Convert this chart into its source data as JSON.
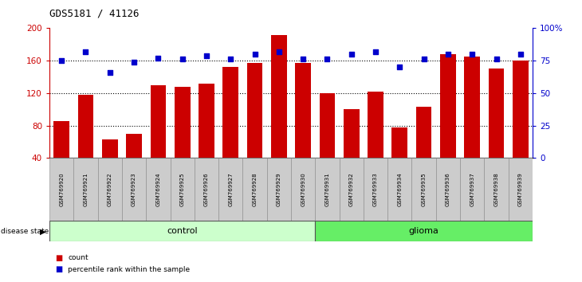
{
  "title": "GDS5181 / 41126",
  "samples": [
    "GSM769920",
    "GSM769921",
    "GSM769922",
    "GSM769923",
    "GSM769924",
    "GSM769925",
    "GSM769926",
    "GSM769927",
    "GSM769928",
    "GSM769929",
    "GSM769930",
    "GSM769931",
    "GSM769932",
    "GSM769933",
    "GSM769934",
    "GSM769935",
    "GSM769936",
    "GSM769937",
    "GSM769938",
    "GSM769939"
  ],
  "counts": [
    85,
    118,
    63,
    70,
    130,
    128,
    132,
    152,
    157,
    192,
    157,
    120,
    100,
    122,
    78,
    103,
    168,
    165,
    150,
    160
  ],
  "percentiles": [
    75,
    82,
    66,
    74,
    77,
    76,
    79,
    76,
    80,
    82,
    76,
    76,
    80,
    82,
    70,
    76,
    80,
    80,
    76,
    80
  ],
  "bar_color": "#cc0000",
  "dot_color": "#0000cc",
  "ylim_left": [
    40,
    200
  ],
  "ylim_right": [
    0,
    100
  ],
  "yticks_left": [
    40,
    80,
    120,
    160,
    200
  ],
  "yticks_right": [
    0,
    25,
    50,
    75,
    100
  ],
  "ytick_labels_right": [
    "0",
    "25",
    "50",
    "75",
    "100%"
  ],
  "grid_values": [
    80,
    120,
    160
  ],
  "control_count": 11,
  "glioma_count": 9,
  "control_label": "control",
  "glioma_label": "glioma",
  "disease_state_label": "disease state",
  "legend_count_label": "count",
  "legend_pct_label": "percentile rank within the sample",
  "control_bg": "#ccffcc",
  "glioma_bg": "#66ee66",
  "sample_bg": "#cccccc",
  "title_color": "#000000",
  "bar_axis_color": "#cc0000",
  "pct_axis_color": "#0000cc",
  "bar_bottom": 40
}
